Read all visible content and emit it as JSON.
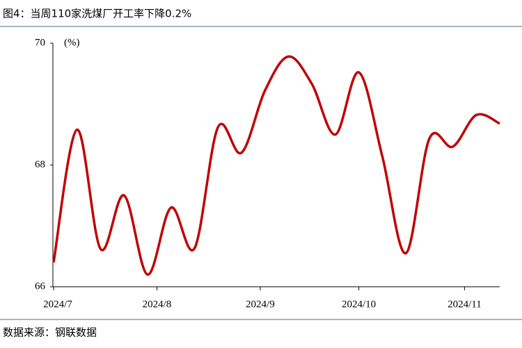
{
  "chart_data": {
    "type": "line",
    "title": "图4：当周110家洗煤厂开工率下降0.2%",
    "y_label": "(%)",
    "source": "数据来源：钢联数据",
    "xlim": [
      0,
      19
    ],
    "xticks": [
      {
        "value": 0,
        "label": "2024/7"
      },
      {
        "value": 4.4,
        "label": "2024/8"
      },
      {
        "value": 8.8,
        "label": "2024/9"
      },
      {
        "value": 13,
        "label": "2024/10"
      },
      {
        "value": 17.5,
        "label": "2024/11"
      }
    ],
    "ylim": [
      66,
      70
    ],
    "yticks": [
      66,
      68,
      70
    ],
    "color": "#c00000",
    "values": [
      66.4,
      68.58,
      66.62,
      67.5,
      66.2,
      67.3,
      66.63,
      68.62,
      68.2,
      69.22,
      69.78,
      69.33,
      68.5,
      69.52,
      68.14,
      66.55,
      68.43,
      68.3,
      68.82,
      68.68
    ]
  }
}
